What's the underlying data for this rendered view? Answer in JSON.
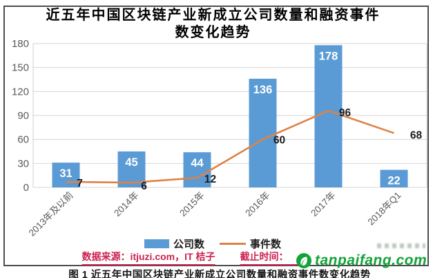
{
  "title": "近五年中国区块链产业新成立公司数量和融资事件数变化趋势",
  "title_lines": [
    "近五年中国区块链产业新成立公司数量和融资事件",
    "数变化趋势"
  ],
  "chart_data": {
    "type": "combo",
    "title": "近五年中国区块链产业新成立公司数量和融资事件数变化趋势",
    "categories": [
      "2013年及以前",
      "2014年",
      "2015年",
      "2016年",
      "2017年",
      "2018年Q1"
    ],
    "series": [
      {
        "name": "公司数",
        "type": "bar",
        "color": "#5b9bd5",
        "values": [
          31,
          45,
          44,
          136,
          178,
          22
        ]
      },
      {
        "name": "事件数",
        "type": "line",
        "color": "#de8244",
        "values": [
          7,
          6,
          12,
          60,
          96,
          68
        ]
      }
    ],
    "xlabel": "",
    "ylabel": "",
    "ylim": [
      0,
      180
    ],
    "yticks": [
      0,
      30,
      60,
      90,
      120,
      150,
      180
    ],
    "grid": true,
    "legend_position": "bottom"
  },
  "legend": {
    "items": [
      {
        "label": "公司数",
        "swatch": "bar-swatch",
        "color": "#5b9bd5"
      },
      {
        "label": "事件数",
        "swatch": "line-swatch",
        "color": "#de8244"
      }
    ]
  },
  "source_note": {
    "data_source_label": "数据来源：itjuzi.com，IT 桔子",
    "cutoff_label": "截止时间：",
    "color": "#cc2151"
  },
  "watermark": {
    "icon": "leaf-globe-icon",
    "text": "tanpaifang.com",
    "color": "#12a339"
  },
  "caption": "图 1  近五年中国区块链产业新成立公司数量和融资事件数变化趋势"
}
